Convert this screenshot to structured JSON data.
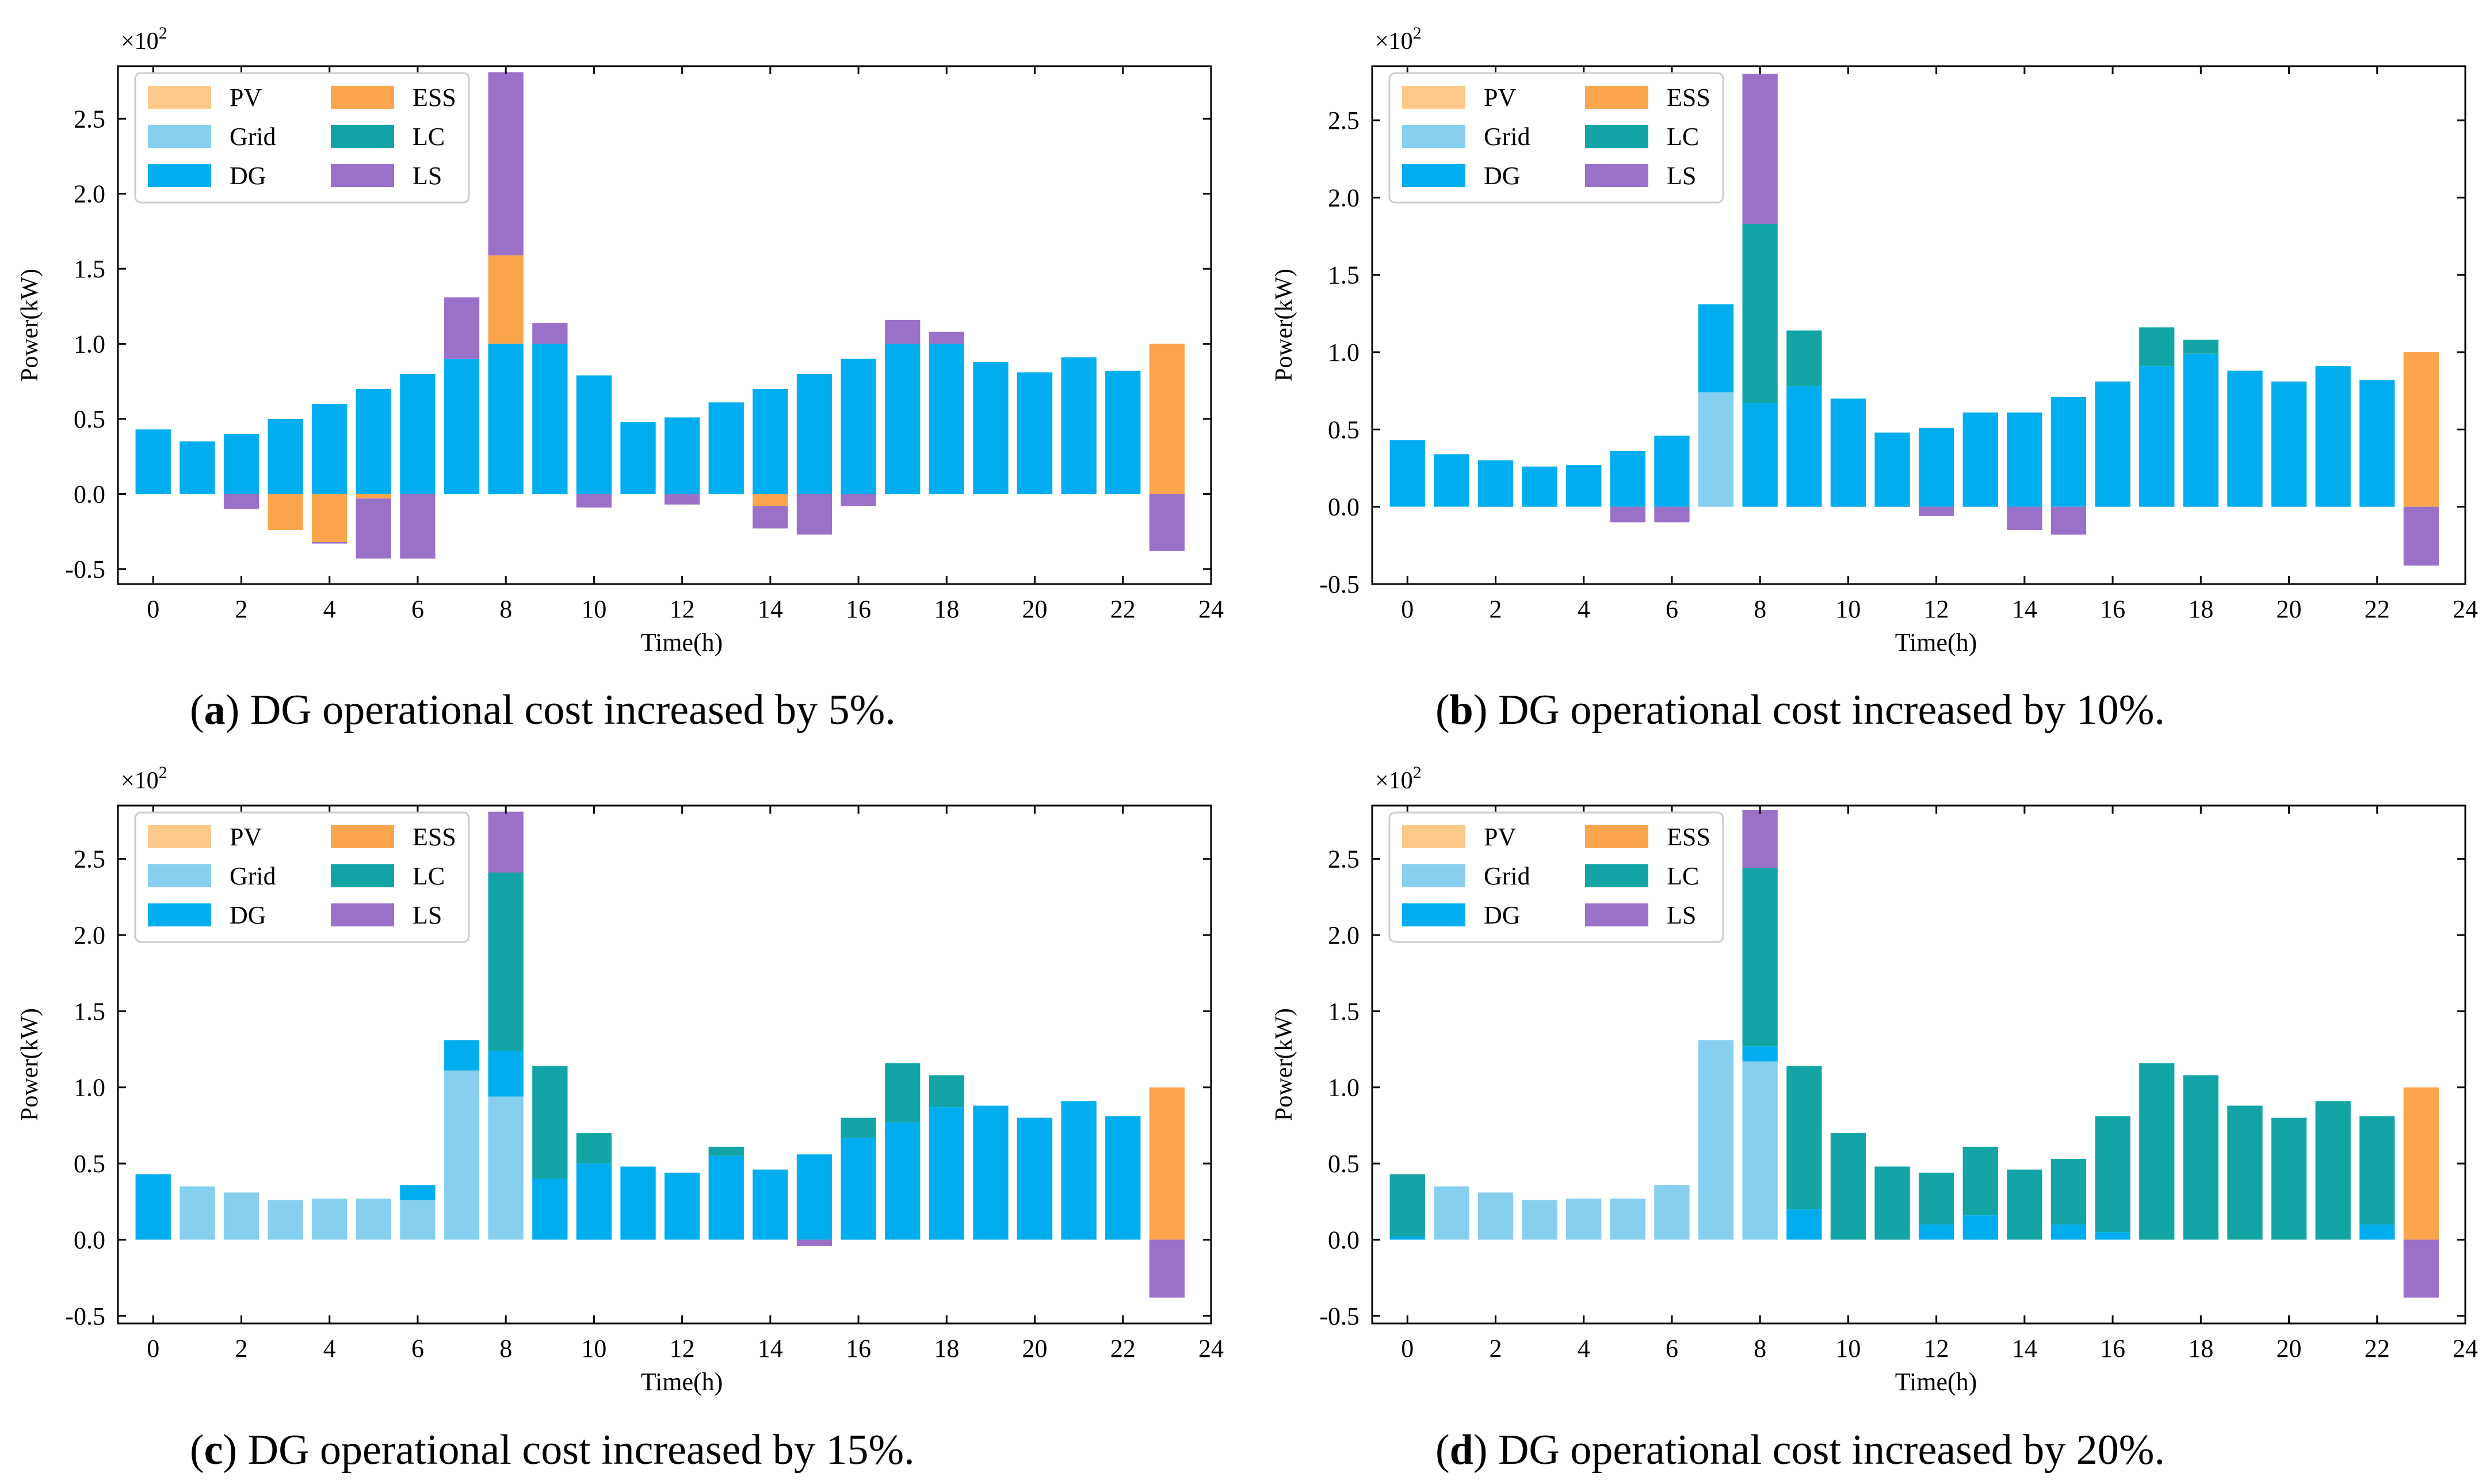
{
  "figure": {
    "panels": [
      {
        "id": "a",
        "letter": "a",
        "caption": "DG operational cost increased by 5%."
      },
      {
        "id": "b",
        "letter": "b",
        "caption": "DG operational cost increased by 10%."
      },
      {
        "id": "c",
        "letter": "c",
        "caption": "DG operational cost increased by 15%."
      },
      {
        "id": "d",
        "letter": "d",
        "caption": "DG operational cost increased by 20%."
      }
    ]
  },
  "colors": {
    "PV": "#fdc98a",
    "Grid": "#87cfee",
    "DG": "#00aeef",
    "ESS": "#fba64c",
    "LC": "#13a5a5",
    "LS": "#9a71c8"
  },
  "chart_data": [
    {
      "panel": "a",
      "type": "bar",
      "stacked": true,
      "title": "",
      "xlabel": "Time(h)",
      "ylabel": "Power(kW)",
      "multiplier_label": "×10",
      "multiplier_exp": "2",
      "xlim": [
        -0.8,
        24
      ],
      "ylim": [
        -0.6,
        2.85
      ],
      "xticks": [
        0,
        2,
        4,
        6,
        8,
        10,
        12,
        14,
        16,
        18,
        20,
        22,
        24
      ],
      "yticks": [
        -0.5,
        0.0,
        0.5,
        1.0,
        1.5,
        2.0,
        2.5
      ],
      "ytick_labels": [
        "-0.5",
        "0.0",
        "0.5",
        "1.0",
        "1.5",
        "2.0",
        "2.5"
      ],
      "legend": [
        "PV",
        "Grid",
        "DG",
        "ESS",
        "LC",
        "LS"
      ],
      "legend_position": "top-left",
      "x": [
        0,
        1,
        2,
        3,
        4,
        5,
        6,
        7,
        8,
        9,
        10,
        11,
        12,
        13,
        14,
        15,
        16,
        17,
        18,
        19,
        20,
        21,
        22,
        23
      ],
      "series": [
        {
          "name": "PV",
          "values": [
            0,
            0,
            0,
            0,
            0,
            0,
            0,
            0,
            0,
            0,
            0,
            0,
            0,
            0,
            0,
            0,
            0,
            0,
            0,
            0,
            0,
            0,
            0,
            0
          ]
        },
        {
          "name": "Grid",
          "values": [
            0,
            0,
            0,
            0,
            0,
            0,
            0,
            0,
            0,
            0,
            0,
            0,
            0,
            0,
            0,
            0,
            0,
            0,
            0,
            0,
            0,
            0,
            0,
            0
          ]
        },
        {
          "name": "DG",
          "values": [
            0.43,
            0.35,
            0.4,
            0.5,
            0.6,
            0.7,
            0.8,
            0.9,
            1.0,
            1.0,
            0.79,
            0.48,
            0.51,
            0.61,
            0.7,
            0.8,
            0.9,
            1.0,
            1.0,
            0.88,
            0.81,
            0.91,
            0.82,
            0
          ]
        },
        {
          "name": "ESS",
          "values": [
            0,
            0,
            0,
            -0.24,
            -0.32,
            -0.03,
            0,
            0,
            0.59,
            0,
            0,
            0,
            0,
            0,
            -0.08,
            0,
            0,
            0,
            0,
            0,
            0,
            0,
            0,
            1.0
          ]
        },
        {
          "name": "LC",
          "values": [
            0,
            0,
            0,
            0,
            0,
            0,
            0,
            0,
            0,
            0,
            0,
            0,
            0,
            0,
            0,
            0,
            0,
            0,
            0,
            0,
            0,
            0,
            0,
            0
          ]
        },
        {
          "name": "LS",
          "values": [
            0,
            0,
            -0.1,
            0,
            -0.01,
            -0.4,
            -0.43,
            0.41,
            1.22,
            0.14,
            -0.09,
            0,
            -0.07,
            0,
            -0.15,
            -0.27,
            -0.08,
            0.16,
            0.08,
            0,
            0,
            0,
            0,
            -0.38
          ]
        }
      ]
    },
    {
      "panel": "b",
      "type": "bar",
      "stacked": true,
      "title": "",
      "xlabel": "Time(h)",
      "ylabel": "Power(kW)",
      "multiplier_label": "×10",
      "multiplier_exp": "2",
      "xlim": [
        -0.8,
        24
      ],
      "ylim": [
        -0.5,
        2.85
      ],
      "xticks": [
        0,
        2,
        4,
        6,
        8,
        10,
        12,
        14,
        16,
        18,
        20,
        22,
        24
      ],
      "yticks": [
        -0.5,
        0.0,
        0.5,
        1.0,
        1.5,
        2.0,
        2.5
      ],
      "ytick_labels": [
        "-0.5",
        "0.0",
        "0.5",
        "1.0",
        "1.5",
        "2.0",
        "2.5"
      ],
      "legend": [
        "PV",
        "Grid",
        "DG",
        "ESS",
        "LC",
        "LS"
      ],
      "legend_position": "top-left",
      "x": [
        0,
        1,
        2,
        3,
        4,
        5,
        6,
        7,
        8,
        9,
        10,
        11,
        12,
        13,
        14,
        15,
        16,
        17,
        18,
        19,
        20,
        21,
        22,
        23
      ],
      "series": [
        {
          "name": "PV",
          "values": [
            0,
            0,
            0,
            0,
            0,
            0,
            0,
            0,
            0,
            0,
            0,
            0,
            0,
            0,
            0,
            0,
            0,
            0,
            0,
            0,
            0,
            0,
            0,
            0
          ]
        },
        {
          "name": "Grid",
          "values": [
            0,
            0,
            0,
            0,
            0,
            0,
            0,
            0.74,
            0,
            0,
            0,
            0,
            0,
            0,
            0,
            0,
            0,
            0,
            0,
            0,
            0,
            0,
            0,
            0
          ]
        },
        {
          "name": "DG",
          "values": [
            0.43,
            0.34,
            0.3,
            0.26,
            0.27,
            0.36,
            0.46,
            0.57,
            0.67,
            0.78,
            0.7,
            0.48,
            0.51,
            0.61,
            0.61,
            0.71,
            0.81,
            0.91,
            0.99,
            0.88,
            0.81,
            0.91,
            0.82,
            0
          ]
        },
        {
          "name": "ESS",
          "values": [
            0,
            0,
            0,
            0,
            0,
            0,
            0,
            0,
            0,
            0,
            0,
            0,
            0,
            0,
            0,
            0,
            0,
            0,
            0,
            0,
            0,
            0,
            0,
            1.0
          ]
        },
        {
          "name": "LC",
          "values": [
            0,
            0,
            0,
            0,
            0,
            0,
            0,
            0,
            1.16,
            0.36,
            0,
            0,
            0,
            0,
            0,
            0,
            0,
            0.25,
            0.09,
            0,
            0,
            0,
            0,
            0
          ]
        },
        {
          "name": "LS",
          "values": [
            0,
            0,
            0,
            0,
            0,
            -0.1,
            -0.1,
            0,
            0.97,
            0,
            0,
            0,
            -0.06,
            0,
            -0.15,
            -0.18,
            0,
            0,
            0,
            0,
            0,
            0,
            0,
            -0.38
          ]
        }
      ]
    },
    {
      "panel": "c",
      "type": "bar",
      "stacked": true,
      "title": "",
      "xlabel": "Time(h)",
      "ylabel": "Power(kW)",
      "multiplier_label": "×10",
      "multiplier_exp": "2",
      "xlim": [
        -0.8,
        24
      ],
      "ylim": [
        -0.55,
        2.85
      ],
      "xticks": [
        0,
        2,
        4,
        6,
        8,
        10,
        12,
        14,
        16,
        18,
        20,
        22,
        24
      ],
      "yticks": [
        -0.5,
        0.0,
        0.5,
        1.0,
        1.5,
        2.0,
        2.5
      ],
      "ytick_labels": [
        "-0.5",
        "0.0",
        "0.5",
        "1.0",
        "1.5",
        "2.0",
        "2.5"
      ],
      "legend": [
        "PV",
        "Grid",
        "DG",
        "ESS",
        "LC",
        "LS"
      ],
      "legend_position": "top-left",
      "x": [
        0,
        1,
        2,
        3,
        4,
        5,
        6,
        7,
        8,
        9,
        10,
        11,
        12,
        13,
        14,
        15,
        16,
        17,
        18,
        19,
        20,
        21,
        22,
        23
      ],
      "series": [
        {
          "name": "PV",
          "values": [
            0,
            0,
            0,
            0,
            0,
            0,
            0,
            0,
            0,
            0,
            0,
            0,
            0,
            0,
            0,
            0,
            0,
            0,
            0,
            0,
            0,
            0,
            0,
            0
          ]
        },
        {
          "name": "Grid",
          "values": [
            0,
            0.35,
            0.31,
            0.26,
            0.27,
            0.27,
            0.26,
            1.11,
            0.94,
            0,
            0,
            0,
            0,
            0,
            0,
            0,
            0,
            0,
            0,
            0,
            0,
            0,
            0,
            0
          ]
        },
        {
          "name": "DG",
          "values": [
            0.43,
            0,
            0,
            0,
            0,
            0,
            0.1,
            0.2,
            0.3,
            0.4,
            0.5,
            0.48,
            0.44,
            0.55,
            0.46,
            0.56,
            0.67,
            0.77,
            0.87,
            0.88,
            0.8,
            0.91,
            0.81,
            0
          ]
        },
        {
          "name": "ESS",
          "values": [
            0,
            0,
            0,
            0,
            0,
            0,
            0,
            0,
            0,
            0,
            0,
            0,
            0,
            0,
            0,
            0,
            0,
            0,
            0,
            0,
            0,
            0,
            0,
            1.0
          ]
        },
        {
          "name": "LC",
          "values": [
            0,
            0,
            0,
            0,
            0,
            0,
            0,
            0,
            1.17,
            0.74,
            0.2,
            0,
            0,
            0.06,
            0,
            0,
            0.13,
            0.39,
            0.21,
            0,
            0,
            0,
            0,
            0
          ]
        },
        {
          "name": "LS",
          "values": [
            0,
            0,
            0,
            0,
            0,
            0,
            0,
            0,
            0.4,
            0,
            0,
            0,
            0,
            0,
            0,
            -0.04,
            0,
            0,
            0,
            0,
            0,
            0,
            0,
            -0.38
          ]
        }
      ]
    },
    {
      "panel": "d",
      "type": "bar",
      "stacked": true,
      "title": "",
      "xlabel": "Time(h)",
      "ylabel": "Power(kW)",
      "multiplier_label": "×10",
      "multiplier_exp": "2",
      "xlim": [
        -0.8,
        24
      ],
      "ylim": [
        -0.55,
        2.85
      ],
      "xticks": [
        0,
        2,
        4,
        6,
        8,
        10,
        12,
        14,
        16,
        18,
        20,
        22,
        24
      ],
      "yticks": [
        -0.5,
        0.0,
        0.5,
        1.0,
        1.5,
        2.0,
        2.5
      ],
      "ytick_labels": [
        "-0.5",
        "0.0",
        "0.5",
        "1.0",
        "1.5",
        "2.0",
        "2.5"
      ],
      "legend": [
        "PV",
        "Grid",
        "DG",
        "ESS",
        "LC",
        "LS"
      ],
      "legend_position": "top-left",
      "x": [
        0,
        1,
        2,
        3,
        4,
        5,
        6,
        7,
        8,
        9,
        10,
        11,
        12,
        13,
        14,
        15,
        16,
        17,
        18,
        19,
        20,
        21,
        22,
        23
      ],
      "series": [
        {
          "name": "PV",
          "values": [
            0,
            0,
            0,
            0,
            0,
            0,
            0,
            0,
            0,
            0,
            0,
            0,
            0,
            0,
            0,
            0,
            0,
            0,
            0,
            0,
            0,
            0,
            0,
            0
          ]
        },
        {
          "name": "Grid",
          "values": [
            0,
            0.35,
            0.31,
            0.26,
            0.27,
            0.27,
            0.36,
            1.31,
            1.17,
            0,
            0,
            0,
            0,
            0,
            0,
            0,
            0,
            0,
            0,
            0,
            0,
            0,
            0,
            0
          ]
        },
        {
          "name": "DG",
          "values": [
            0.02,
            0,
            0,
            0,
            0,
            0,
            0,
            0,
            0.1,
            0.2,
            0,
            0,
            0.1,
            0.16,
            0,
            0.1,
            0.05,
            0,
            0,
            0,
            0,
            0,
            0.1,
            0
          ]
        },
        {
          "name": "ESS",
          "values": [
            0,
            0,
            0,
            0,
            0,
            0,
            0,
            0,
            0,
            0,
            0,
            0,
            0,
            0,
            0,
            0,
            0,
            0,
            0,
            0,
            0,
            0,
            0,
            1.0
          ]
        },
        {
          "name": "LC",
          "values": [
            0.41,
            0,
            0,
            0,
            0,
            0,
            0,
            0,
            1.17,
            0.94,
            0.7,
            0.48,
            0.34,
            0.45,
            0.46,
            0.43,
            0.76,
            1.16,
            1.08,
            0.88,
            0.8,
            0.91,
            0.71,
            0
          ]
        },
        {
          "name": "LS",
          "values": [
            0,
            0,
            0,
            0,
            0,
            0,
            0,
            0,
            0.38,
            0,
            0,
            0,
            0,
            0,
            0,
            0,
            0,
            0,
            0,
            0,
            0,
            0,
            0,
            -0.38
          ]
        }
      ]
    }
  ]
}
